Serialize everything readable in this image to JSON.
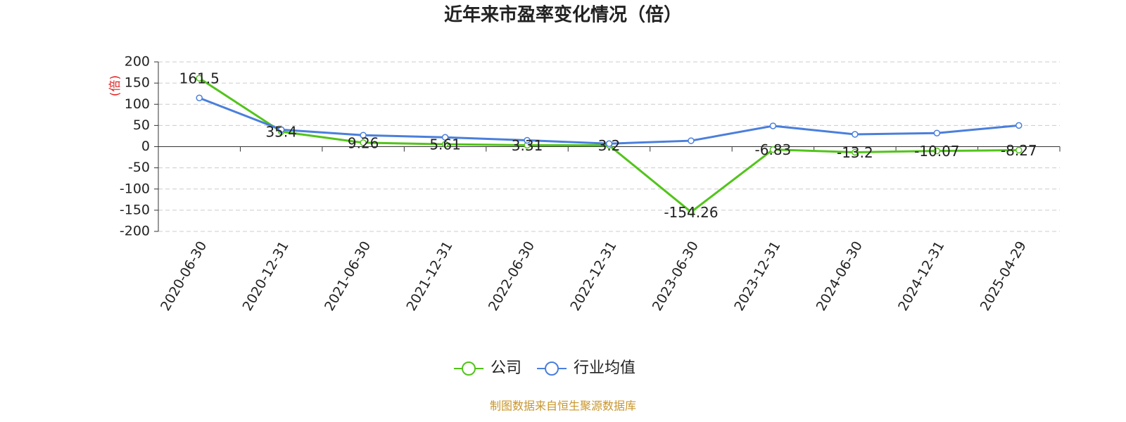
{
  "chart_data": {
    "type": "line",
    "title": "近年来市盈率变化情况（倍）",
    "y_label": "(倍)",
    "categories": [
      "2020-06-30",
      "2020-12-31",
      "2021-06-30",
      "2021-12-31",
      "2022-06-30",
      "2022-12-31",
      "2023-06-30",
      "2023-12-31",
      "2024-06-30",
      "2024-12-31",
      "2025-04-29"
    ],
    "series": [
      {
        "name": "公司",
        "color": "#52c41a",
        "values": [
          161.5,
          35.4,
          9.26,
          5.61,
          3.31,
          3.2,
          -154.26,
          -6.83,
          -13.2,
          -10.07,
          -8.27
        ],
        "show_labels": true
      },
      {
        "name": "行业均值",
        "color": "#4a7fdc",
        "values": [
          115,
          40,
          27,
          22,
          15,
          7,
          14,
          49,
          29,
          32,
          50
        ],
        "show_labels": false
      }
    ],
    "ylim": [
      -200,
      200
    ],
    "yticks": [
      -200,
      -150,
      -100,
      -50,
      0,
      50,
      100,
      150,
      200
    ],
    "grid": true,
    "legend": "bottom",
    "source": "制图数据来自恒生聚源数据库"
  }
}
